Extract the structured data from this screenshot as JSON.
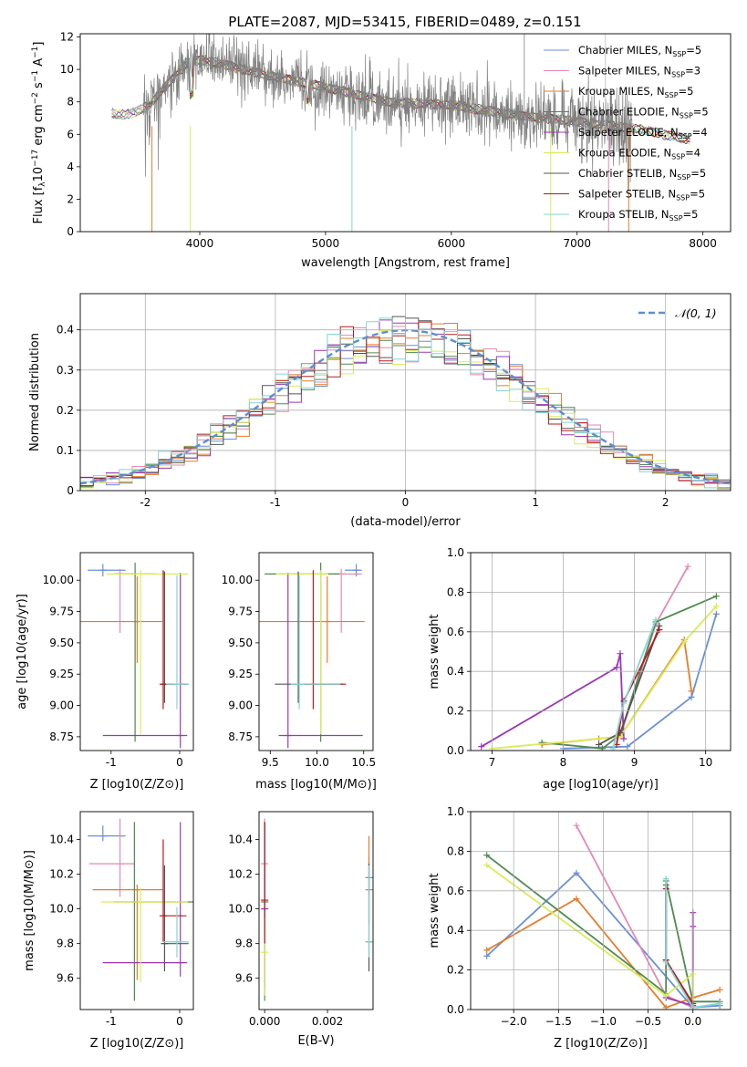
{
  "title": "PLATE=2087, MJD=53415, FIBERID=0489, z=0.151",
  "colors": {
    "chabrier_miles": "#6a8fd8",
    "salpeter_miles": "#e688b4",
    "kroupa_miles": "#e77c2a",
    "chabrier_elodie": "#4f8a4f",
    "salpeter_elodie": "#9b38b3",
    "kroupa_elodie": "#d7ee56",
    "chabrier_stelib": "#555555",
    "salpeter_stelib": "#b51c1c",
    "kroupa_stelib": "#85d4d4",
    "data": "#808080"
  },
  "chart_data": [
    {
      "id": "spectrum",
      "type": "line",
      "xlabel": "wavelength [Angstrom, rest frame]",
      "ylabel": "Flux [fλ10⁻¹⁷ erg cm⁻² s⁻¹ A⁻¹]",
      "xlim": [
        3050,
        8220
      ],
      "ylim": [
        0,
        12.2
      ],
      "xticks": [
        "4000",
        "5000",
        "6000",
        "7000",
        "8000"
      ],
      "yticks": [
        "0",
        "2",
        "4",
        "6",
        "8",
        "10",
        "12"
      ],
      "grid": false,
      "legend_position": "top-right",
      "legend": [
        {
          "base": "Chabrier MILES, N",
          "sub": "SSP",
          "tail": "=5",
          "color": "chabrier_miles"
        },
        {
          "base": "Salpeter MILES, N",
          "sub": "SSP",
          "tail": "=3",
          "color": "salpeter_miles"
        },
        {
          "base": "Kroupa MILES, N",
          "sub": "SSP",
          "tail": "=5",
          "color": "kroupa_miles"
        },
        {
          "base": "Chabrier ELODIE, N",
          "sub": "SSP",
          "tail": "=5",
          "color": "chabrier_elodie"
        },
        {
          "base": "Salpeter ELODIE, N",
          "sub": "SSP",
          "tail": "=4",
          "color": "salpeter_elodie"
        },
        {
          "base": "Kroupa ELODIE, N",
          "sub": "SSP",
          "tail": "=4",
          "color": "kroupa_elodie"
        },
        {
          "base": "Chabrier STELIB, N",
          "sub": "SSP",
          "tail": "=5",
          "color": "chabrier_stelib"
        },
        {
          "base": "Salpeter STELIB, N",
          "sub": "SSP",
          "tail": "=5",
          "color": "salpeter_stelib"
        },
        {
          "base": "Kroupa STELIB, N",
          "sub": "SSP",
          "tail": "=5",
          "color": "kroupa_stelib"
        }
      ],
      "continuum_model": {
        "x": [
          3300,
          3400,
          3500,
          3600,
          3700,
          3800,
          3900,
          4000,
          4200,
          4500,
          5000,
          5500,
          6000,
          6500,
          7000,
          7500,
          8000
        ],
        "y": [
          7.3,
          7.2,
          7.4,
          7.8,
          8.7,
          9.6,
          10.4,
          10.6,
          10.3,
          9.7,
          8.9,
          8.0,
          7.8,
          7.2,
          6.8,
          6.3,
          5.5
        ]
      },
      "data_range": [
        3550,
        7440
      ],
      "data_noise_scale": 1.7
    },
    {
      "id": "residual_histogram",
      "type": "histogram",
      "xlabel": "(data-model)/error",
      "ylabel": "Normed distribution",
      "xlim": [
        -2.5,
        2.5
      ],
      "ylim": [
        0,
        0.49
      ],
      "xticks": [
        -2,
        -1,
        0,
        1,
        2
      ],
      "yticks": [
        0.0,
        0.1,
        0.2,
        0.3,
        0.4
      ],
      "grid": true,
      "bin_width": 0.1,
      "reference_curve": {
        "label": "𝒩(0, 1)",
        "mean": 0,
        "sigma": 1,
        "style": "dashed",
        "color": "#5b8ed6"
      },
      "legend_position": "top-right"
    },
    {
      "id": "age_vs_Z",
      "type": "errorbar",
      "xlabel": "Z [log10(Z/Z⊙)]",
      "ylabel": "age  [log10(age/yr)]",
      "xlim": [
        -1.45,
        0.2
      ],
      "ylim": [
        8.64,
        10.22
      ],
      "xticks": [
        -1,
        0
      ],
      "yticks": [
        "8.75",
        "9.00",
        "9.25",
        "9.50",
        "9.75",
        "10.00"
      ],
      "points": [
        {
          "color": "chabrier_miles",
          "x": -1.12,
          "y": 10.08,
          "xerr": [
            0.22,
            0.33
          ],
          "yerr": [
            0.05,
            0.05
          ]
        },
        {
          "color": "salpeter_miles",
          "x": -0.87,
          "y": 10.05,
          "xerr": [
            0.1,
            0.22
          ],
          "yerr": [
            0.47,
            0.04
          ]
        },
        {
          "color": "kroupa_miles",
          "x": -0.62,
          "y": 9.67,
          "xerr": [
            0.83,
            0.37
          ],
          "yerr": [
            0.33,
            0.36
          ]
        },
        {
          "color": "chabrier_elodie",
          "x": -0.65,
          "y": 10.05,
          "xerr": [
            0.3,
            0.3
          ],
          "yerr": [
            1.34,
            0.09
          ]
        },
        {
          "color": "salpeter_elodie",
          "x": 0.01,
          "y": 8.76,
          "xerr": [
            1.13,
            0.1
          ],
          "yerr": [
            0.1,
            1.3
          ]
        },
        {
          "color": "kroupa_elodie",
          "x": -0.57,
          "y": 10.05,
          "xerr": [
            0.5,
            0.69
          ],
          "yerr": [
            1.28,
            0.03
          ]
        },
        {
          "color": "chabrier_stelib",
          "x": -0.22,
          "y": 9.17,
          "xerr": [
            0.03,
            0.35
          ],
          "yerr": [
            0.15,
            0.9
          ]
        },
        {
          "color": "salpeter_stelib",
          "x": -0.24,
          "y": 9.17,
          "xerr": [
            0.01,
            0.34
          ],
          "yerr": [
            0.2,
            0.91
          ]
        },
        {
          "color": "kroupa_stelib",
          "x": -0.04,
          "y": 9.17,
          "xerr": [
            0.16,
            0.17
          ],
          "yerr": [
            0.2,
            0.87
          ]
        }
      ]
    },
    {
      "id": "age_vs_mass",
      "type": "errorbar",
      "xlabel": "mass [log10(M/M⊙)]",
      "ylabel": "",
      "xlim": [
        9.38,
        10.6
      ],
      "ylim": [
        8.64,
        10.22
      ],
      "xticks": [
        "9.5",
        "10.0",
        "10.5"
      ],
      "yticks": [
        "8.75",
        "9.00",
        "9.25",
        "9.50",
        "9.75",
        "10.00"
      ],
      "points": [
        {
          "color": "chabrier_miles",
          "x": 10.42,
          "y": 10.08,
          "xerr": [
            0.12,
            0.06
          ],
          "yerr": [
            0.05,
            0.05
          ]
        },
        {
          "color": "salpeter_miles",
          "x": 10.26,
          "y": 10.05,
          "xerr": [
            0.18,
            0.22
          ],
          "yerr": [
            0.47,
            0.04
          ]
        },
        {
          "color": "kroupa_miles",
          "x": 10.11,
          "y": 9.67,
          "xerr": [
            0.75,
            0.4
          ],
          "yerr": [
            0.33,
            0.36
          ]
        },
        {
          "color": "chabrier_elodie",
          "x": 10.04,
          "y": 10.05,
          "xerr": [
            0.6,
            0.2
          ],
          "yerr": [
            1.34,
            0.09
          ]
        },
        {
          "color": "salpeter_elodie",
          "x": 9.69,
          "y": 8.76,
          "xerr": [
            0.1,
            0.8
          ],
          "yerr": [
            0.1,
            1.3
          ]
        },
        {
          "color": "kroupa_elodie",
          "x": 10.04,
          "y": 10.05,
          "xerr": [
            0.48,
            0.08
          ],
          "yerr": [
            1.28,
            0.03
          ]
        },
        {
          "color": "chabrier_stelib",
          "x": 9.8,
          "y": 9.17,
          "xerr": [
            0.25,
            0.48
          ],
          "yerr": [
            0.15,
            0.9
          ]
        },
        {
          "color": "salpeter_stelib",
          "x": 9.96,
          "y": 9.17,
          "xerr": [
            0.1,
            0.35
          ],
          "yerr": [
            0.2,
            0.91
          ]
        },
        {
          "color": "kroupa_stelib",
          "x": 9.81,
          "y": 9.17,
          "xerr": [
            0.09,
            0.44
          ],
          "yerr": [
            0.2,
            0.87
          ]
        }
      ]
    },
    {
      "id": "weight_vs_age",
      "type": "line",
      "xlabel": "age  [log10(age/yr)]",
      "ylabel": "mass weight",
      "xlim": [
        6.7,
        10.35
      ],
      "ylim": [
        0,
        1.0
      ],
      "xticks": [
        7,
        8,
        9,
        10
      ],
      "yticks": [
        "0.0",
        "0.2",
        "0.4",
        "0.6",
        "0.8",
        "1.0"
      ],
      "grid": true,
      "series": [
        {
          "color": "chabrier_miles",
          "x": [
            8.0,
            8.9,
            9.8,
            10.15
          ],
          "y": [
            0.01,
            0.02,
            0.27,
            0.69
          ]
        },
        {
          "color": "salpeter_miles",
          "x": [
            8.8,
            9.3,
            9.75
          ],
          "y": [
            0.07,
            0.64,
            0.93
          ]
        },
        {
          "color": "kroupa_miles",
          "x": [
            7.7,
            8.5,
            8.8,
            9.7,
            9.8
          ],
          "y": [
            0.03,
            0.06,
            0.07,
            0.56,
            0.3
          ]
        },
        {
          "color": "chabrier_elodie",
          "x": [
            7.7,
            8.55,
            8.8,
            9.3,
            10.15
          ],
          "y": [
            0.04,
            0.01,
            0.08,
            0.65,
            0.78
          ]
        },
        {
          "color": "salpeter_elodie",
          "x": [
            6.85,
            8.75,
            8.8,
            8.85
          ],
          "y": [
            0.02,
            0.42,
            0.49,
            0.06
          ]
        },
        {
          "color": "kroupa_elodie",
          "x": [
            7.0,
            8.8,
            9.7,
            10.15
          ],
          "y": [
            0.01,
            0.07,
            0.55,
            0.73
          ]
        },
        {
          "color": "chabrier_stelib",
          "x": [
            8.5,
            8.8,
            9.35
          ],
          "y": [
            0.03,
            0.09,
            0.63
          ]
        },
        {
          "color": "salpeter_stelib",
          "x": [
            8.75,
            8.85,
            9.35
          ],
          "y": [
            0.03,
            0.25,
            0.61
          ]
        },
        {
          "color": "kroupa_stelib",
          "x": [
            8.7,
            8.85,
            9.3
          ],
          "y": [
            0.01,
            0.24,
            0.66
          ]
        }
      ]
    },
    {
      "id": "mass_vs_Z",
      "type": "errorbar",
      "xlabel": "Z [log10(Z/Z⊙)]",
      "ylabel": "mass [log10(M/M⊙)]",
      "xlim": [
        -1.45,
        0.2
      ],
      "ylim": [
        9.42,
        10.56
      ],
      "xticks": [
        -1,
        0
      ],
      "yticks": [
        "9.6",
        "9.8",
        "10.0",
        "10.2",
        "10.4"
      ],
      "points": [
        {
          "color": "chabrier_miles",
          "x": -1.12,
          "y": 10.42,
          "xerr": [
            0.22,
            0.33
          ],
          "yerr": [
            0.03,
            0.06
          ]
        },
        {
          "color": "salpeter_miles",
          "x": -0.87,
          "y": 10.26,
          "xerr": [
            0.45,
            0.22
          ],
          "yerr": [
            0.19,
            0.26
          ]
        },
        {
          "color": "kroupa_miles",
          "x": -0.62,
          "y": 10.11,
          "xerr": [
            0.65,
            0.37
          ],
          "yerr": [
            0.52,
            0.03
          ]
        },
        {
          "color": "chabrier_elodie",
          "x": -0.66,
          "y": 10.04,
          "xerr": [
            0.3,
            0.98
          ],
          "yerr": [
            0.57,
            0.46
          ]
        },
        {
          "color": "salpeter_elodie",
          "x": 0.01,
          "y": 9.69,
          "xerr": [
            1.13,
            0.1
          ],
          "yerr": [
            0.08,
            0.81
          ]
        },
        {
          "color": "kroupa_elodie",
          "x": -0.57,
          "y": 10.04,
          "xerr": [
            0.58,
            0.69
          ],
          "yerr": [
            0.46,
            0.08
          ]
        },
        {
          "color": "chabrier_stelib",
          "x": -0.22,
          "y": 9.8,
          "xerr": [
            0.03,
            0.35
          ],
          "yerr": [
            0.16,
            0.45
          ]
        },
        {
          "color": "salpeter_stelib",
          "x": -0.24,
          "y": 9.96,
          "xerr": [
            0.01,
            0.34
          ],
          "yerr": [
            0.15,
            0.44
          ]
        },
        {
          "color": "kroupa_stelib",
          "x": -0.04,
          "y": 9.81,
          "xerr": [
            0.2,
            0.17
          ],
          "yerr": [
            0.09,
            0.2
          ]
        }
      ]
    },
    {
      "id": "mass_vs_ebv",
      "type": "errorbar",
      "xlabel": "E(B-V)",
      "ylabel": "",
      "xlim": [
        -0.00018,
        0.00345
      ],
      "ylim": [
        9.42,
        10.56
      ],
      "xticks": [
        "0.000",
        "0.002"
      ],
      "yticks": [
        "9.6",
        "9.8",
        "10.0",
        "10.2",
        "10.4"
      ],
      "points": [
        {
          "color": "chabrier_miles",
          "x": 0.00332,
          "y": 10.18,
          "xerr": [
            0,
            0
          ],
          "yerr": [
            0.1,
            0.12
          ]
        },
        {
          "color": "salpeter_miles",
          "x": 0.0,
          "y": 10.26,
          "xerr": [
            0,
            0
          ],
          "yerr": [
            0.19,
            0.26
          ]
        },
        {
          "color": "kroupa_miles",
          "x": 0.00332,
          "y": 10.11,
          "xerr": [
            0,
            0
          ],
          "yerr": [
            0.2,
            0.31
          ]
        },
        {
          "color": "chabrier_elodie",
          "x": 0.0,
          "y": 10.04,
          "xerr": [
            0,
            0
          ],
          "yerr": [
            0.57,
            0.46
          ]
        },
        {
          "color": "salpeter_elodie",
          "x": 0.0,
          "y": 10.0,
          "xerr": [
            0,
            0
          ],
          "yerr": [
            0.45,
            0.5
          ]
        },
        {
          "color": "kroupa_elodie",
          "x": 0.0,
          "y": 9.75,
          "xerr": [
            0,
            0
          ],
          "yerr": [
            0.25,
            0.2
          ]
        },
        {
          "color": "chabrier_stelib",
          "x": 0.00332,
          "y": 9.81,
          "xerr": [
            0,
            0
          ],
          "yerr": [
            0.17,
            0.45
          ]
        },
        {
          "color": "salpeter_stelib",
          "x": 0.0,
          "y": 10.05,
          "xerr": [
            0,
            0
          ],
          "yerr": [
            0.25,
            0.45
          ]
        },
        {
          "color": "kroupa_stelib",
          "x": 0.00332,
          "y": 9.81,
          "xerr": [
            0,
            0
          ],
          "yerr": [
            0.09,
            0.44
          ]
        }
      ]
    },
    {
      "id": "weight_vs_Z",
      "type": "line",
      "xlabel": "Z [log10(Z/Z⊙)]",
      "ylabel": "mass weight",
      "xlim": [
        -2.48,
        0.42
      ],
      "ylim": [
        0,
        1.0
      ],
      "xticks": [
        "−2.0",
        "−1.5",
        "−1.0",
        "−0.5",
        "0.0"
      ],
      "xtick_values": [
        -2.0,
        -1.5,
        -1.0,
        -0.5,
        0.0
      ],
      "yticks": [
        "0.0",
        "0.2",
        "0.4",
        "0.6",
        "0.8",
        "1.0"
      ],
      "grid": true,
      "series": [
        {
          "color": "chabrier_miles",
          "x": [
            -2.3,
            -1.3,
            0.0,
            0.3
          ],
          "y": [
            0.27,
            0.69,
            0.01,
            0.02
          ]
        },
        {
          "color": "salpeter_miles",
          "x": [
            -1.3,
            -0.3,
            0.0
          ],
          "y": [
            0.93,
            0.07,
            0.01
          ]
        },
        {
          "color": "kroupa_miles",
          "x": [
            -2.3,
            -1.3,
            -0.3,
            0.0,
            0.3
          ],
          "y": [
            0.3,
            0.56,
            0.01,
            0.06,
            0.1
          ]
        },
        {
          "color": "chabrier_elodie",
          "x": [
            -2.3,
            -0.3,
            -0.3,
            0.0,
            0.3
          ],
          "y": [
            0.78,
            0.08,
            0.65,
            0.04,
            0.04
          ]
        },
        {
          "color": "salpeter_elodie",
          "x": [
            -0.3,
            0.0,
            0.0,
            0.0
          ],
          "y": [
            0.06,
            0.02,
            0.49,
            0.42
          ]
        },
        {
          "color": "kroupa_elodie",
          "x": [
            -2.3,
            -0.3,
            0.0,
            0.0
          ],
          "y": [
            0.73,
            0.07,
            0.18,
            0.01
          ]
        },
        {
          "color": "chabrier_stelib",
          "x": [
            -0.3,
            -0.3,
            0.0
          ],
          "y": [
            0.63,
            0.25,
            0.01
          ]
        },
        {
          "color": "salpeter_stelib",
          "x": [
            -0.3,
            -0.3,
            0.0
          ],
          "y": [
            0.61,
            0.25,
            0.03
          ]
        },
        {
          "color": "kroupa_stelib",
          "x": [
            -0.3,
            -0.3,
            0.0,
            0.3
          ],
          "y": [
            0.66,
            0.24,
            0.01,
            0.03
          ]
        }
      ]
    }
  ]
}
